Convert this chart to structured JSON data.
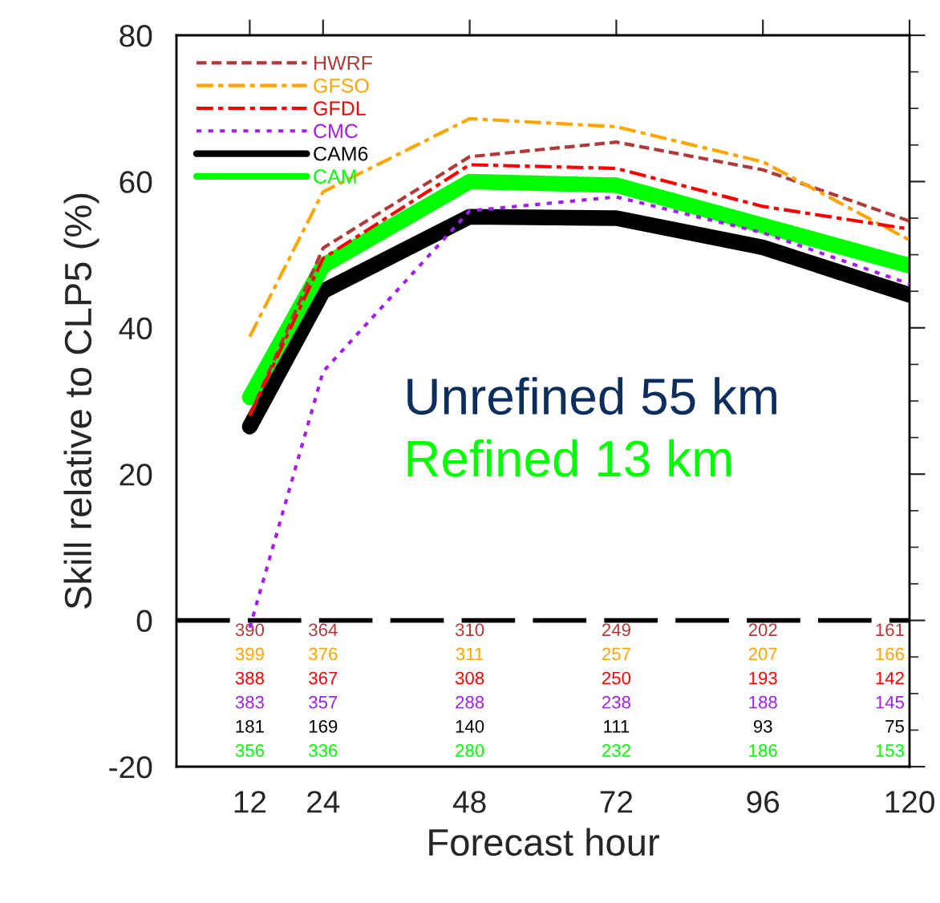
{
  "chart_data": {
    "type": "line",
    "xlabel": "Forecast hour",
    "ylabel": "Skill relative to CLP5 (%)",
    "x": [
      12,
      24,
      48,
      72,
      96,
      120
    ],
    "series": [
      {
        "name": "HWRF",
        "color": "#b03a3a",
        "line_style": "dashed",
        "values": [
          28,
          50.9,
          63.4,
          65.4,
          61.6,
          54.6
        ]
      },
      {
        "name": "GFSO",
        "color": "#ffa500",
        "line_style": "dashdot",
        "values": [
          38.8,
          58.6,
          68.6,
          67.5,
          62.7,
          52
        ]
      },
      {
        "name": "GFDL",
        "color": "#ff0000",
        "line_style": "dashdot",
        "values": [
          28,
          49.5,
          62.3,
          61.8,
          56.6,
          53.5
        ]
      },
      {
        "name": "CMC",
        "color": "#a020f0",
        "line_style": "dotted",
        "values": [
          -1,
          34,
          56,
          57.9,
          53,
          46
        ]
      },
      {
        "name": "CAM6",
        "color": "#000000",
        "line_style": "solid",
        "values": [
          26.5,
          45,
          55.2,
          55,
          51,
          44.5
        ]
      },
      {
        "name": "CAM",
        "color": "#00ff00",
        "line_style": "solid",
        "values": [
          30.5,
          48.5,
          60,
          59.5,
          54,
          48.5
        ]
      }
    ],
    "xlim": [
      0,
      120
    ],
    "xticks": [
      12,
      24,
      48,
      72,
      96,
      120
    ],
    "ylim": [
      -20,
      80
    ],
    "yticks": [
      -20,
      0,
      20,
      40,
      60,
      80
    ],
    "ref_lines": [
      {
        "axis": "y",
        "value": 0,
        "color": "#000000",
        "line_style": "dashed"
      }
    ],
    "grid": false,
    "legend": "top left",
    "annotations": [
      "Unrefined 55 km",
      "Refined 13 km",
      "390",
      "364",
      "310",
      "249",
      "202",
      "161",
      "399",
      "376",
      "311",
      "257",
      "207",
      "166",
      "388",
      "367",
      "308",
      "250",
      "193",
      "142",
      "383",
      "357",
      "288",
      "238",
      "188",
      "145",
      "181",
      "169",
      "140",
      "111",
      "93",
      "75",
      "356",
      "336",
      "280",
      "232",
      "186",
      "153"
    ]
  }
}
